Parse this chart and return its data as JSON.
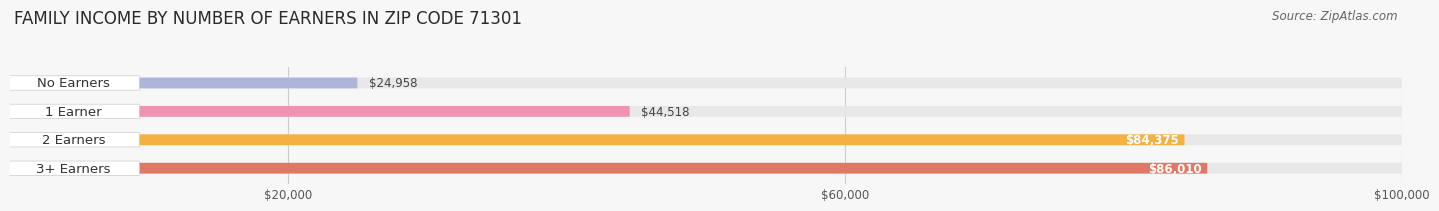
{
  "title": "FAMILY INCOME BY NUMBER OF EARNERS IN ZIP CODE 71301",
  "source": "Source: ZipAtlas.com",
  "categories": [
    "No Earners",
    "1 Earner",
    "2 Earners",
    "3+ Earners"
  ],
  "values": [
    24958,
    44518,
    84375,
    86010
  ],
  "bar_colors": [
    "#adb5d8",
    "#f093b0",
    "#f5b042",
    "#e07868"
  ],
  "bg_bar_color": "#e8e8e8",
  "value_labels": [
    "$24,958",
    "$44,518",
    "$84,375",
    "$86,010"
  ],
  "value_inside": [
    false,
    false,
    true,
    true
  ],
  "xmax": 100000,
  "xticks": [
    20000,
    60000,
    100000
  ],
  "xtick_labels": [
    "$20,000",
    "$60,000",
    "$100,000"
  ],
  "background_color": "#f7f7f7",
  "title_fontsize": 12,
  "source_fontsize": 8.5,
  "label_fontsize": 9.5,
  "value_fontsize": 8.5
}
